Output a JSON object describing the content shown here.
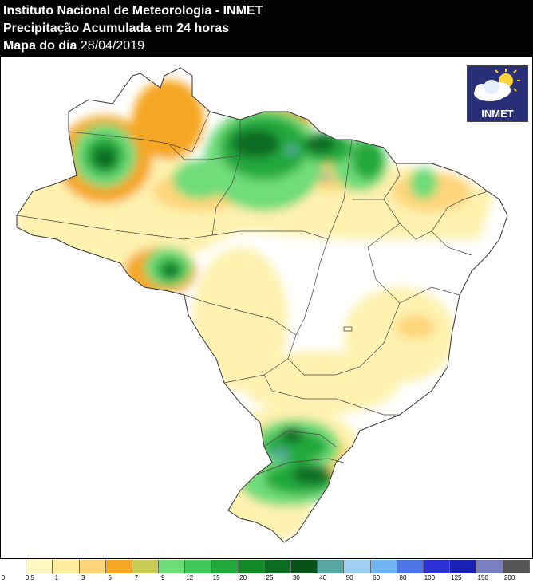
{
  "header": {
    "line1": "Instituto Nacional de Meteorologia - INMET",
    "line2": "Precipitação Acumulada em 24 horas",
    "line3_label": "Mapa do dia",
    "line3_date": "28/04/2019"
  },
  "logo": {
    "text": "INMET",
    "icon": "cloud-sun-icon"
  },
  "legend": {
    "colors": [
      "#ffffff",
      "#fff7c2",
      "#ffec9e",
      "#ffd57a",
      "#f5a623",
      "#c8cc55",
      "#6fdc7a",
      "#3fc75a",
      "#22a83c",
      "#138a2a",
      "#0c6a21",
      "#0a5219",
      "#56a79f",
      "#9fcff2",
      "#6fb2f0",
      "#4d73e6",
      "#2a2fd6",
      "#1a1fb8",
      "#7a7fbf",
      "#555555"
    ],
    "labels": [
      "0",
      "0.5",
      "1",
      "3",
      "5",
      "7",
      "9",
      "12",
      "15",
      "20",
      "25",
      "30",
      "40",
      "50",
      "60",
      "80",
      "100",
      "125",
      "150",
      "200"
    ]
  },
  "map": {
    "country": "Brasil",
    "background": "#ffffff",
    "precip_colors": {
      "light": "#fff2b0",
      "moderate": "#ffd57a",
      "orange": "#f5a623",
      "lightgreen": "#6fdc7a",
      "green": "#22a83c",
      "darkgreen": "#0c6a21",
      "teal": "#56a79f"
    }
  }
}
